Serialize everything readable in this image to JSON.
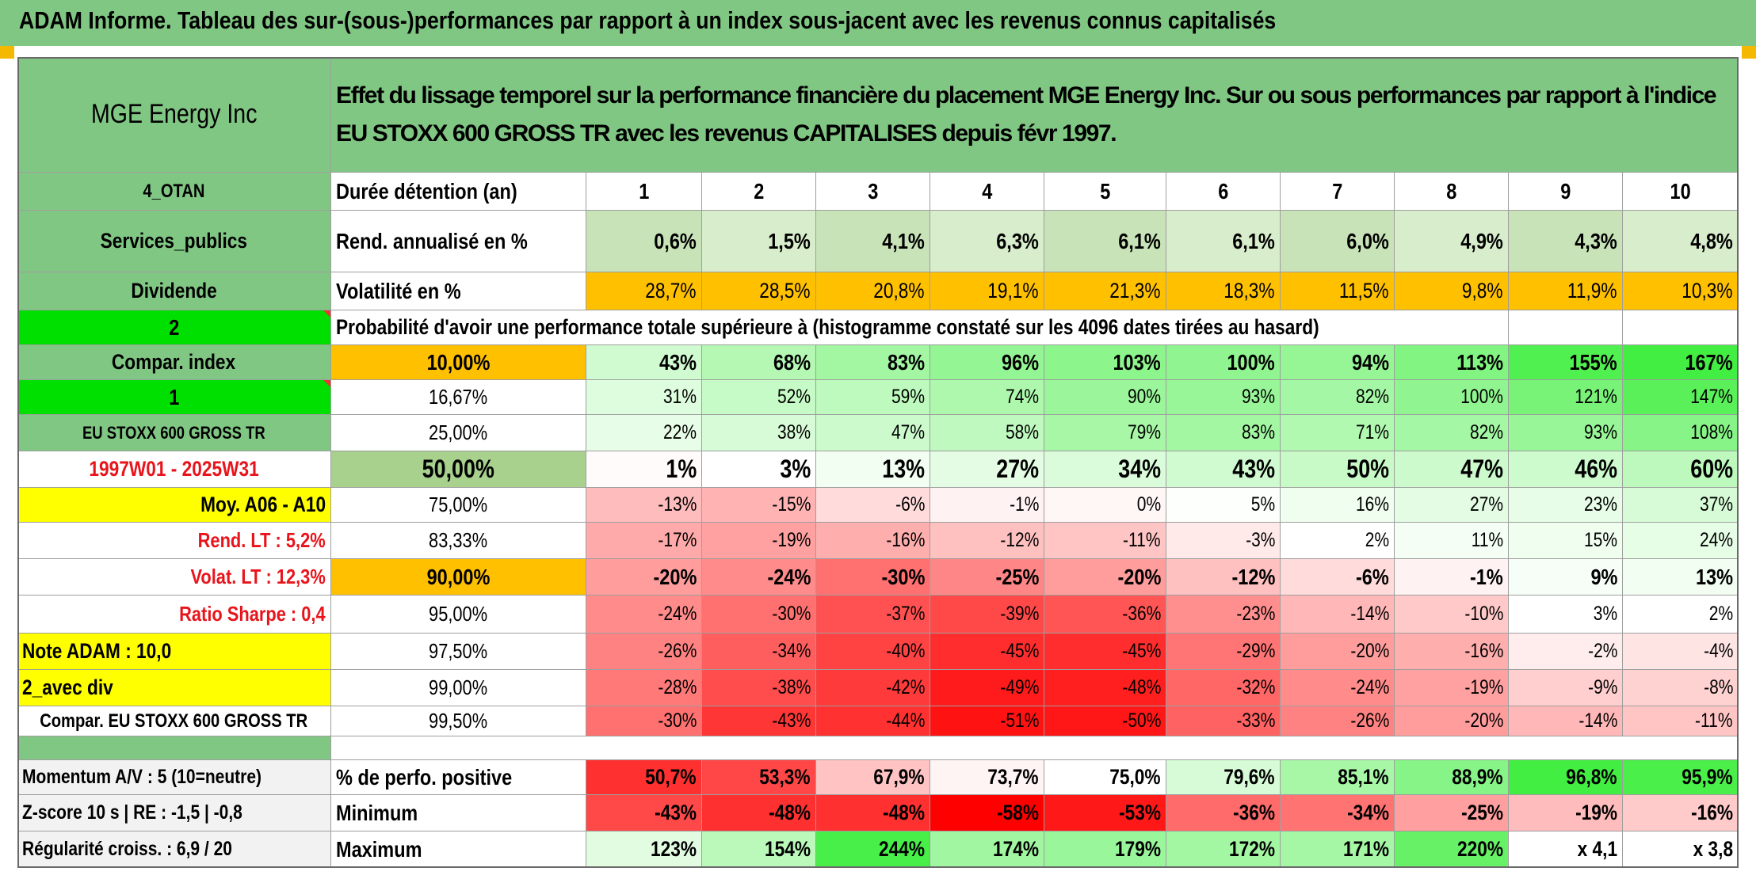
{
  "report_title": "ADAM Informe. Tableau des sur-(sous-)performances par rapport à un index sous-jacent avec les revenus connus capitalisés",
  "header": {
    "company": "MGE Energy Inc",
    "description": "Effet du lissage temporel sur la performance financière du placement MGE Energy Inc. Sur ou sous performances par rapport à l'indice EU STOXX 600 GROSS TR avec les revenus CAPITALISES depuis févr 1997."
  },
  "colors": {
    "title_green": "#81c784",
    "header_green": "#81c784",
    "bright_green": "#00e000",
    "yellow": "#ffff00",
    "orange": "#ffc000",
    "red_text": "#e8141c",
    "gray_cell": "#f2f2f2"
  },
  "sidebar": [
    "4_OTAN",
    "Services_publics",
    "Dividende",
    "2",
    "Compar. index",
    "1",
    "EU STOXX 600 GROSS TR",
    "1997W01 - 2025W31",
    "Moy. A06 - A10",
    "Rend. LT :   5,2%",
    "Volat. LT :   12,3%",
    "Ratio Sharpe :   0,4",
    "Note ADAM : 10,0",
    "2_avec div",
    "Compar. EU STOXX 600 GROSS TR"
  ],
  "row_labels": {
    "duration": "Durée détention (an)",
    "return": "Rend. annualisé en %",
    "volatility": "Volatilité en %",
    "probability": "Probabilité d'avoir une performance totale supérieure à (histogramme constaté sur les 4096 dates tirées au hasard)"
  },
  "years": [
    "1",
    "2",
    "3",
    "4",
    "5",
    "6",
    "7",
    "8",
    "9",
    "10"
  ],
  "annual_return": [
    "0,6%",
    "1,5%",
    "4,1%",
    "6,3%",
    "6,1%",
    "6,1%",
    "6,0%",
    "4,9%",
    "4,3%",
    "4,8%"
  ],
  "volatility": [
    "28,7%",
    "28,5%",
    "20,8%",
    "19,1%",
    "21,3%",
    "18,3%",
    "11,5%",
    "9,8%",
    "11,9%",
    "10,3%"
  ],
  "percentile_rows": [
    {
      "level": "10,00%",
      "values": [
        "43%",
        "68%",
        "83%",
        "96%",
        "103%",
        "100%",
        "94%",
        "113%",
        "155%",
        "167%"
      ]
    },
    {
      "level": "16,67%",
      "values": [
        "31%",
        "52%",
        "59%",
        "74%",
        "90%",
        "93%",
        "82%",
        "100%",
        "121%",
        "147%"
      ]
    },
    {
      "level": "25,00%",
      "values": [
        "22%",
        "38%",
        "47%",
        "58%",
        "79%",
        "83%",
        "71%",
        "82%",
        "93%",
        "108%"
      ]
    },
    {
      "level": "50,00%",
      "values": [
        "1%",
        "3%",
        "13%",
        "27%",
        "34%",
        "43%",
        "50%",
        "47%",
        "46%",
        "60%"
      ]
    },
    {
      "level": "75,00%",
      "values": [
        "-13%",
        "-15%",
        "-6%",
        "-1%",
        "0%",
        "5%",
        "16%",
        "27%",
        "23%",
        "37%"
      ]
    },
    {
      "level": "83,33%",
      "values": [
        "-17%",
        "-19%",
        "-16%",
        "-12%",
        "-11%",
        "-3%",
        "2%",
        "11%",
        "15%",
        "24%"
      ]
    },
    {
      "level": "90,00%",
      "values": [
        "-20%",
        "-24%",
        "-30%",
        "-25%",
        "-20%",
        "-12%",
        "-6%",
        "-1%",
        "9%",
        "13%"
      ]
    },
    {
      "level": "95,00%",
      "values": [
        "-24%",
        "-30%",
        "-37%",
        "-39%",
        "-36%",
        "-23%",
        "-14%",
        "-10%",
        "3%",
        "2%"
      ]
    },
    {
      "level": "97,50%",
      "values": [
        "-26%",
        "-34%",
        "-40%",
        "-45%",
        "-45%",
        "-29%",
        "-20%",
        "-16%",
        "-2%",
        "-4%"
      ]
    },
    {
      "level": "99,00%",
      "values": [
        "-28%",
        "-38%",
        "-42%",
        "-49%",
        "-48%",
        "-32%",
        "-24%",
        "-19%",
        "-9%",
        "-8%"
      ]
    },
    {
      "level": "99,50%",
      "values": [
        "-30%",
        "-43%",
        "-44%",
        "-51%",
        "-50%",
        "-33%",
        "-26%",
        "-20%",
        "-14%",
        "-11%"
      ]
    }
  ],
  "footer_rows": [
    {
      "left": "Momentum A/V : 5 (10=neutre)",
      "label": "% de perfo. positive",
      "values": [
        "50,7%",
        "53,3%",
        "67,9%",
        "73,7%",
        "75,0%",
        "79,6%",
        "85,1%",
        "88,9%",
        "96,8%",
        "95,9%"
      ]
    },
    {
      "left": "Z-score 10 s | RE : -1,5 | -0,8",
      "label": "Minimum",
      "values": [
        "-43%",
        "-48%",
        "-48%",
        "-58%",
        "-53%",
        "-36%",
        "-34%",
        "-25%",
        "-19%",
        "-16%"
      ]
    },
    {
      "left": "Régularité croiss. : 6,9 / 20",
      "label": "Maximum",
      "values": [
        "123%",
        "154%",
        "244%",
        "174%",
        "179%",
        "172%",
        "171%",
        "220%",
        "x 4,1",
        "x 3,8"
      ]
    }
  ]
}
